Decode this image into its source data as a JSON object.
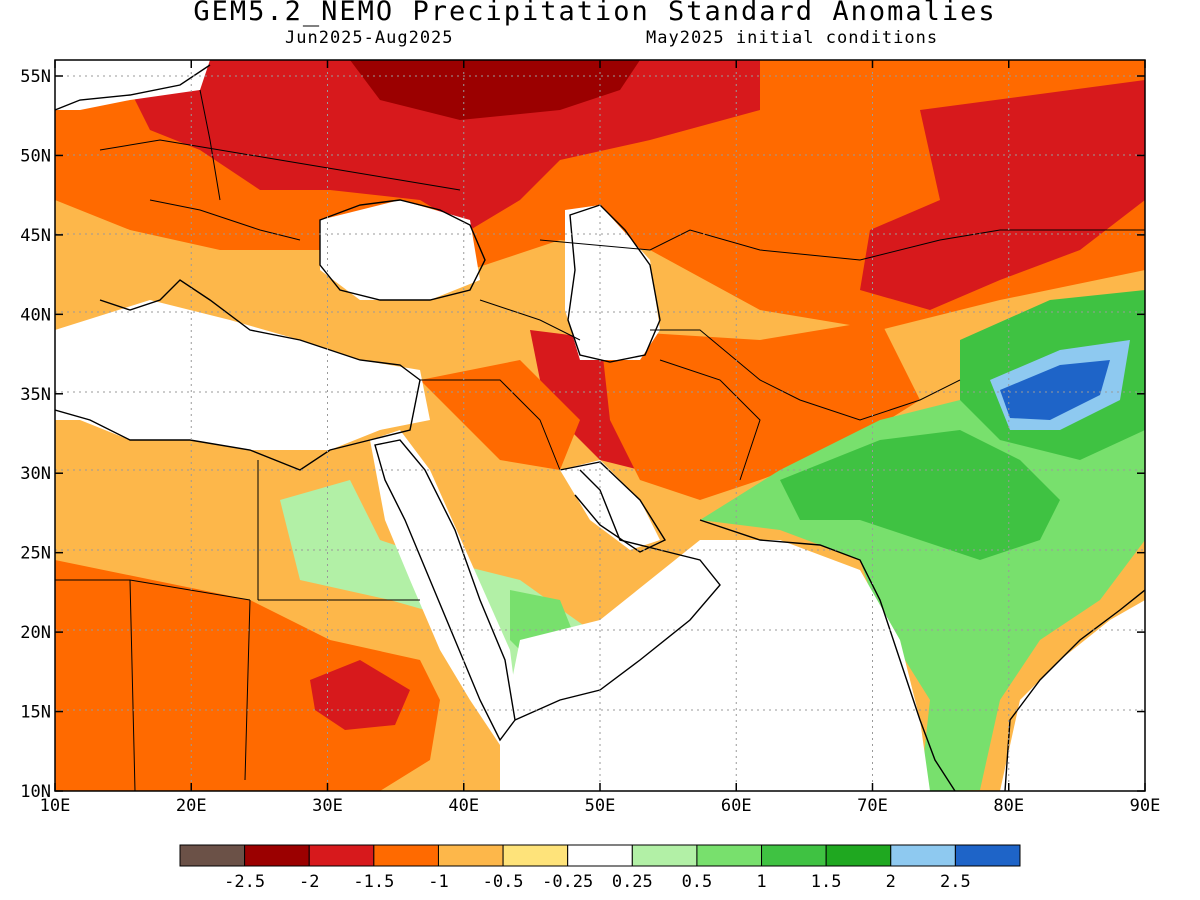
{
  "header": {
    "title": "GEM5.2_NEMO Precipitation Standard Anomalies",
    "period": "Jun2025-Aug2025",
    "initial_conditions": "May2025 initial conditions"
  },
  "axes": {
    "lon_labels": [
      "10E",
      "20E",
      "30E",
      "40E",
      "50E",
      "60E",
      "70E",
      "80E",
      "90E"
    ],
    "lat_labels": [
      "10N",
      "15N",
      "20N",
      "25N",
      "30N",
      "35N",
      "40N",
      "45N",
      "50N",
      "55N"
    ]
  },
  "legend": {
    "colors": [
      "#6b5147",
      "#9b0000",
      "#d7191c",
      "#ff6a00",
      "#fdb74a",
      "#fee37a",
      "#ffffff",
      "#b2f0a6",
      "#78e06d",
      "#3fc242",
      "#1fa820",
      "#8ec9f0",
      "#1e64c8"
    ],
    "labels": [
      "-2.5",
      "-2",
      "-1.5",
      "-1",
      "-0.5",
      "-0.25",
      "0.25",
      "0.5",
      "1",
      "1.5",
      "2",
      "2.5"
    ]
  },
  "colors": {
    "ocean": "#ffffff",
    "coast": "#000000"
  }
}
